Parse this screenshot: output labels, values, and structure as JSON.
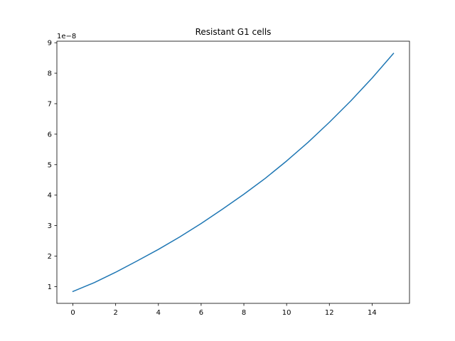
{
  "chart_data": {
    "type": "line",
    "title": "Resistant G1 cells",
    "xlabel": "",
    "ylabel": "",
    "y_offset_label": "1e−8",
    "xlim": [
      -0.75,
      15.75
    ],
    "ylim": [
      0.45,
      9.05
    ],
    "xticks": [
      0,
      2,
      4,
      6,
      8,
      10,
      12,
      14
    ],
    "xtick_labels": [
      "0",
      "2",
      "4",
      "6",
      "8",
      "10",
      "12",
      "14"
    ],
    "yticks": [
      1,
      2,
      3,
      4,
      5,
      6,
      7,
      8,
      9
    ],
    "ytick_labels": [
      "1",
      "2",
      "3",
      "4",
      "5",
      "6",
      "7",
      "8",
      "9"
    ],
    "grid": false,
    "color": "#1f77b4",
    "series": [
      {
        "x": [
          0,
          1,
          2,
          3,
          4,
          5,
          6,
          7,
          8,
          9,
          10,
          11,
          12,
          13,
          14,
          15
        ],
        "y": [
          0.84,
          1.13,
          1.47,
          1.84,
          2.22,
          2.63,
          3.07,
          3.54,
          4.03,
          4.55,
          5.12,
          5.73,
          6.39,
          7.09,
          7.84,
          8.65
        ]
      }
    ]
  }
}
